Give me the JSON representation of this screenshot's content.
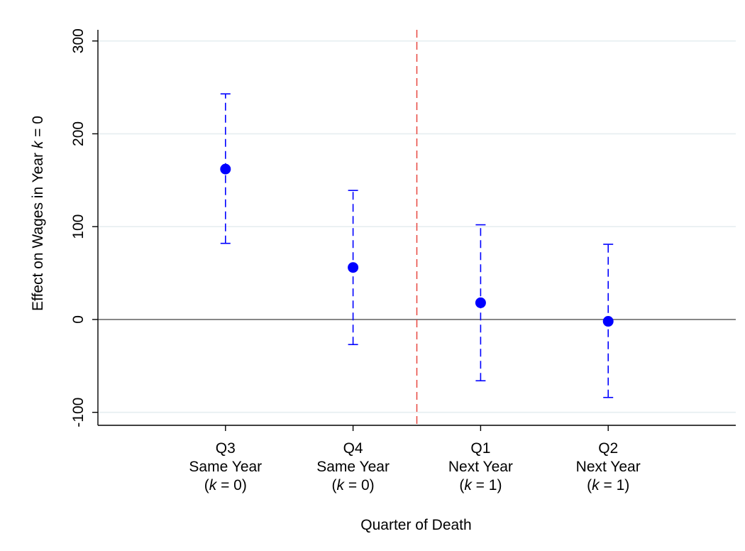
{
  "chart_data": {
    "type": "scatter",
    "subtype": "point-with-confidence-interval",
    "xlabel": "Quarter of Death",
    "ylabel_parts": [
      {
        "text": "Effect on Wages in Year ",
        "italic": false
      },
      {
        "text": "k",
        "italic": true
      },
      {
        "text": " = 0",
        "italic": false
      }
    ],
    "categories": [
      {
        "lines": [
          [
            {
              "text": "Q3",
              "italic": false
            }
          ],
          [
            {
              "text": "Same Year",
              "italic": false
            }
          ],
          [
            {
              "text": "(",
              "italic": false
            },
            {
              "text": "k",
              "italic": true
            },
            {
              "text": " = 0)",
              "italic": false
            }
          ]
        ]
      },
      {
        "lines": [
          [
            {
              "text": "Q4",
              "italic": false
            }
          ],
          [
            {
              "text": "Same Year",
              "italic": false
            }
          ],
          [
            {
              "text": "(",
              "italic": false
            },
            {
              "text": "k",
              "italic": true
            },
            {
              "text": " = 0)",
              "italic": false
            }
          ]
        ]
      },
      {
        "lines": [
          [
            {
              "text": "Q1",
              "italic": false
            }
          ],
          [
            {
              "text": "Next Year",
              "italic": false
            }
          ],
          [
            {
              "text": "(",
              "italic": false
            },
            {
              "text": "k",
              "italic": true
            },
            {
              "text": " = 1)",
              "italic": false
            }
          ]
        ]
      },
      {
        "lines": [
          [
            {
              "text": "Q2",
              "italic": false
            }
          ],
          [
            {
              "text": "Next Year",
              "italic": false
            }
          ],
          [
            {
              "text": "(",
              "italic": false
            },
            {
              "text": "k",
              "italic": true
            },
            {
              "text": " = 1)",
              "italic": false
            }
          ]
        ]
      }
    ],
    "series": [
      {
        "values": [
          162,
          56,
          18,
          -2
        ],
        "ci_low": [
          82,
          -27,
          -66,
          -84
        ],
        "ci_high": [
          243,
          139,
          102,
          81
        ],
        "color": "#0000ff"
      }
    ],
    "yticks": [
      -100,
      0,
      100,
      200,
      300
    ],
    "ylim": [
      -114,
      312
    ],
    "xlim": [
      0,
      5
    ],
    "zero_line_color": "#7f7f7f",
    "grid": true,
    "grid_color": "#e6eef0",
    "vertical_reference_line": {
      "x": 2.5,
      "color": "#e8473f",
      "style": "dashed"
    }
  }
}
